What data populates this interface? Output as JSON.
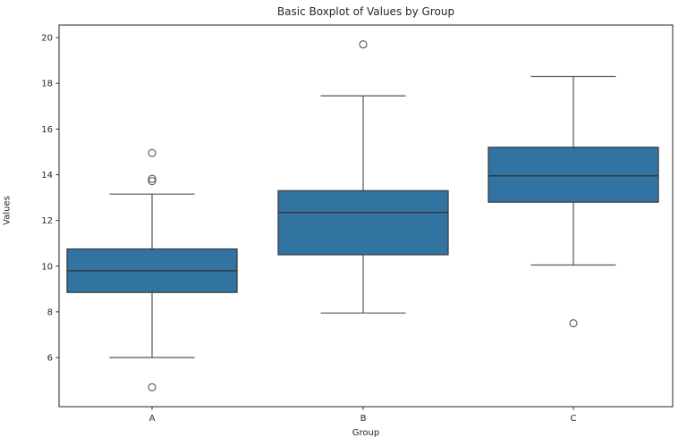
{
  "title": "Basic Boxplot of Values by Group",
  "chart_data": {
    "type": "boxplot",
    "title": "Basic Boxplot of Values by Group",
    "xlabel": "Group",
    "ylabel": "Values",
    "categories": [
      "A",
      "B",
      "C"
    ],
    "yticks": [
      6,
      8,
      10,
      12,
      14,
      16,
      18,
      20
    ],
    "ylim": [
      3.85,
      20.55
    ],
    "grid": false,
    "legend": "none",
    "series": [
      {
        "group": "A",
        "whisker_low": 6.0,
        "q1": 8.85,
        "median": 9.8,
        "q3": 10.75,
        "whisker_high": 13.15,
        "outliers": [
          4.7,
          13.72,
          13.82,
          14.95
        ]
      },
      {
        "group": "B",
        "whisker_low": 7.95,
        "q1": 10.5,
        "median": 12.35,
        "q3": 13.3,
        "whisker_high": 17.45,
        "outliers": [
          19.7
        ]
      },
      {
        "group": "C",
        "whisker_low": 10.05,
        "q1": 12.8,
        "median": 13.95,
        "q3": 15.2,
        "whisker_high": 18.3,
        "outliers": [
          7.5
        ]
      }
    ],
    "colors": {
      "box_fill": "#3274A1",
      "box_edge": "#3A3E42",
      "median_line": "#32363A",
      "whisker": "#555555",
      "cap": "#555555",
      "flier_edge": "#555555",
      "axis": "#262626",
      "tick_text": "#262626"
    }
  }
}
